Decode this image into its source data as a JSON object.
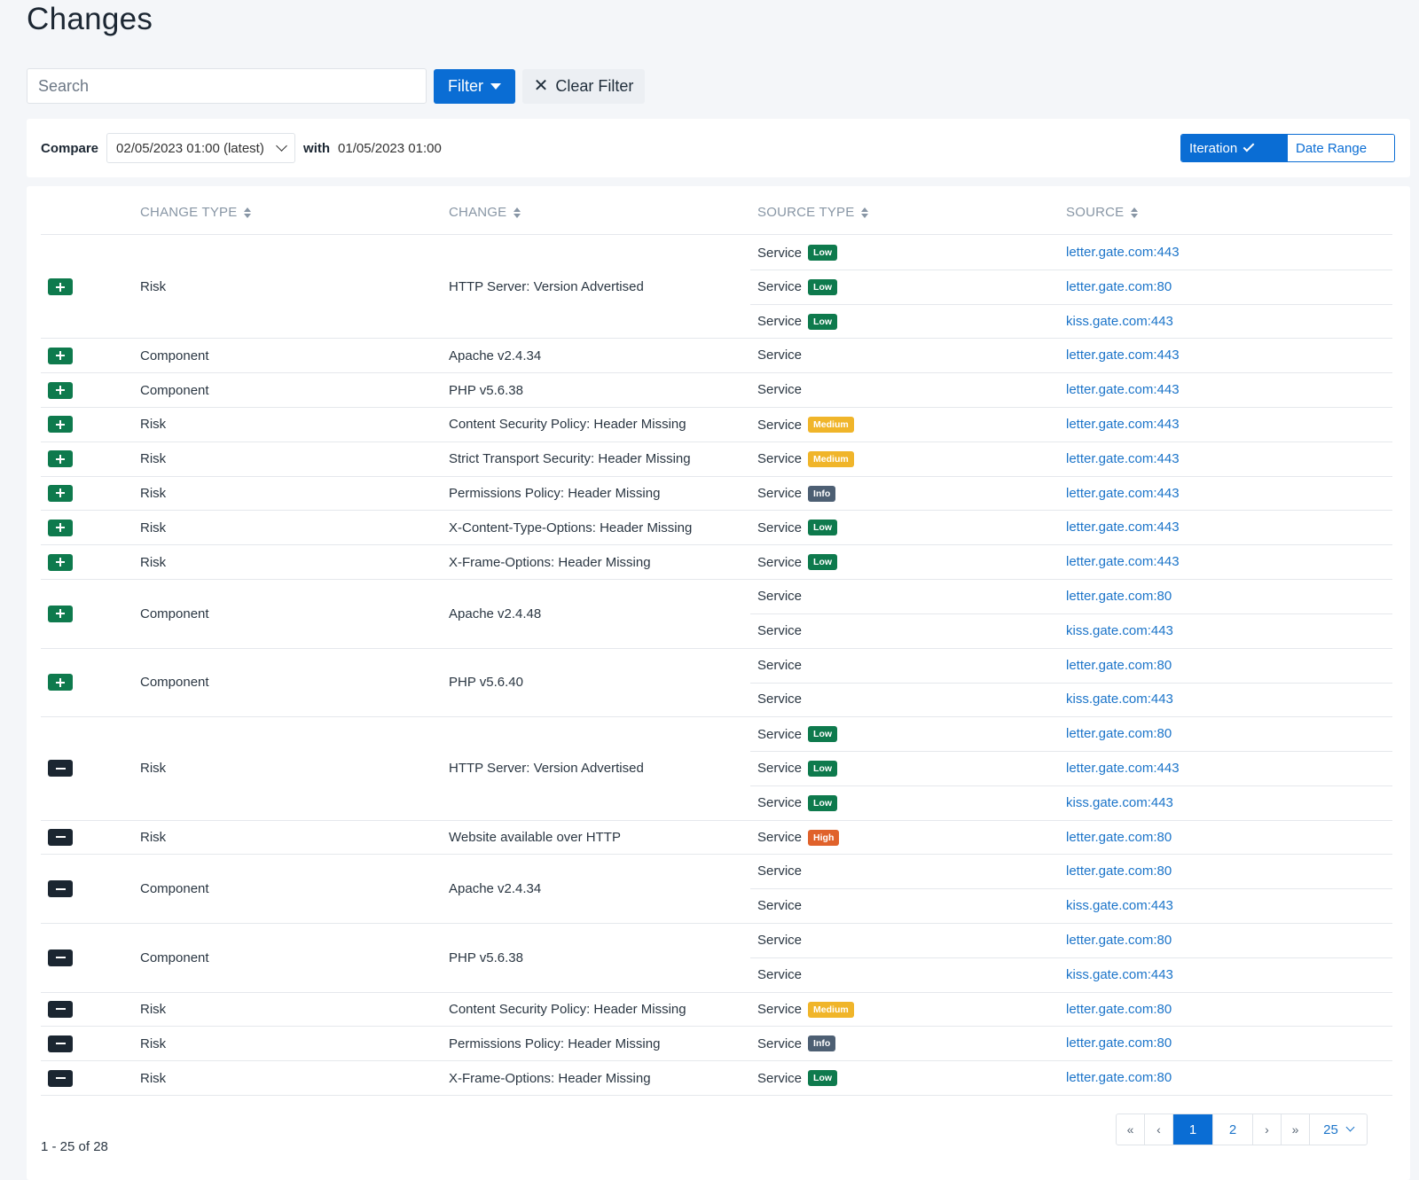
{
  "page": {
    "title": "Changes"
  },
  "toolbar": {
    "search_placeholder": "Search",
    "filter_label": "Filter",
    "clear_filter_label": "Clear Filter"
  },
  "compare": {
    "label": "Compare",
    "selected": "02/05/2023 01:00 (latest)",
    "with_label": "with",
    "with_date": "01/05/2023 01:00",
    "mode_iteration": "Iteration",
    "mode_date_range": "Date Range"
  },
  "table": {
    "columns": [
      "CHANGE TYPE",
      "CHANGE",
      "SOURCE TYPE",
      "SOURCE"
    ],
    "rows": [
      {
        "action": "add",
        "change_type": "Risk",
        "change": "HTTP Server: Version Advertised",
        "sources": [
          {
            "type": "Service",
            "severity": "Low",
            "source": "letter.gate.com:443"
          },
          {
            "type": "Service",
            "severity": "Low",
            "source": "letter.gate.com:80"
          },
          {
            "type": "Service",
            "severity": "Low",
            "source": "kiss.gate.com:443"
          }
        ]
      },
      {
        "action": "add",
        "change_type": "Component",
        "change": "Apache v2.4.34",
        "sources": [
          {
            "type": "Service",
            "severity": null,
            "source": "letter.gate.com:443"
          }
        ]
      },
      {
        "action": "add",
        "change_type": "Component",
        "change": "PHP v5.6.38",
        "sources": [
          {
            "type": "Service",
            "severity": null,
            "source": "letter.gate.com:443"
          }
        ]
      },
      {
        "action": "add",
        "change_type": "Risk",
        "change": "Content Security Policy: Header Missing",
        "sources": [
          {
            "type": "Service",
            "severity": "Medium",
            "source": "letter.gate.com:443"
          }
        ]
      },
      {
        "action": "add",
        "change_type": "Risk",
        "change": "Strict Transport Security: Header Missing",
        "sources": [
          {
            "type": "Service",
            "severity": "Medium",
            "source": "letter.gate.com:443"
          }
        ]
      },
      {
        "action": "add",
        "change_type": "Risk",
        "change": "Permissions Policy: Header Missing",
        "sources": [
          {
            "type": "Service",
            "severity": "Info",
            "source": "letter.gate.com:443"
          }
        ]
      },
      {
        "action": "add",
        "change_type": "Risk",
        "change": "X-Content-Type-Options: Header Missing",
        "sources": [
          {
            "type": "Service",
            "severity": "Low",
            "source": "letter.gate.com:443"
          }
        ]
      },
      {
        "action": "add",
        "change_type": "Risk",
        "change": "X-Frame-Options: Header Missing",
        "sources": [
          {
            "type": "Service",
            "severity": "Low",
            "source": "letter.gate.com:443"
          }
        ]
      },
      {
        "action": "add",
        "change_type": "Component",
        "change": "Apache v2.4.48",
        "sources": [
          {
            "type": "Service",
            "severity": null,
            "source": "letter.gate.com:80"
          },
          {
            "type": "Service",
            "severity": null,
            "source": "kiss.gate.com:443"
          }
        ]
      },
      {
        "action": "add",
        "change_type": "Component",
        "change": "PHP v5.6.40",
        "sources": [
          {
            "type": "Service",
            "severity": null,
            "source": "letter.gate.com:80"
          },
          {
            "type": "Service",
            "severity": null,
            "source": "kiss.gate.com:443"
          }
        ]
      },
      {
        "action": "remove",
        "change_type": "Risk",
        "change": "HTTP Server: Version Advertised",
        "sources": [
          {
            "type": "Service",
            "severity": "Low",
            "source": "letter.gate.com:80"
          },
          {
            "type": "Service",
            "severity": "Low",
            "source": "letter.gate.com:443"
          },
          {
            "type": "Service",
            "severity": "Low",
            "source": "kiss.gate.com:443"
          }
        ]
      },
      {
        "action": "remove",
        "change_type": "Risk",
        "change": "Website available over HTTP",
        "sources": [
          {
            "type": "Service",
            "severity": "High",
            "source": "letter.gate.com:80"
          }
        ]
      },
      {
        "action": "remove",
        "change_type": "Component",
        "change": "Apache v2.4.34",
        "sources": [
          {
            "type": "Service",
            "severity": null,
            "source": "letter.gate.com:80"
          },
          {
            "type": "Service",
            "severity": null,
            "source": "kiss.gate.com:443"
          }
        ]
      },
      {
        "action": "remove",
        "change_type": "Component",
        "change": "PHP v5.6.38",
        "sources": [
          {
            "type": "Service",
            "severity": null,
            "source": "letter.gate.com:80"
          },
          {
            "type": "Service",
            "severity": null,
            "source": "kiss.gate.com:443"
          }
        ]
      },
      {
        "action": "remove",
        "change_type": "Risk",
        "change": "Content Security Policy: Header Missing",
        "sources": [
          {
            "type": "Service",
            "severity": "Medium",
            "source": "letter.gate.com:80"
          }
        ]
      },
      {
        "action": "remove",
        "change_type": "Risk",
        "change": "Permissions Policy: Header Missing",
        "sources": [
          {
            "type": "Service",
            "severity": "Info",
            "source": "letter.gate.com:80"
          }
        ]
      },
      {
        "action": "remove",
        "change_type": "Risk",
        "change": "X-Frame-Options: Header Missing",
        "sources": [
          {
            "type": "Service",
            "severity": "Low",
            "source": "letter.gate.com:80"
          }
        ]
      }
    ]
  },
  "pagination": {
    "range_text": "1 - 25 of 28",
    "first": "«",
    "prev": "‹",
    "pages": [
      "1",
      "2"
    ],
    "active_page": "1",
    "next": "›",
    "last": "»",
    "page_size": "25"
  },
  "colors": {
    "primary": "#0a6dd4",
    "add": "#0e7a4d",
    "remove": "#1b2631",
    "low": "#0e7a4d",
    "medium": "#f0b52a",
    "info": "#4d5f73",
    "high": "#e0622b",
    "link": "#1b74c9"
  }
}
